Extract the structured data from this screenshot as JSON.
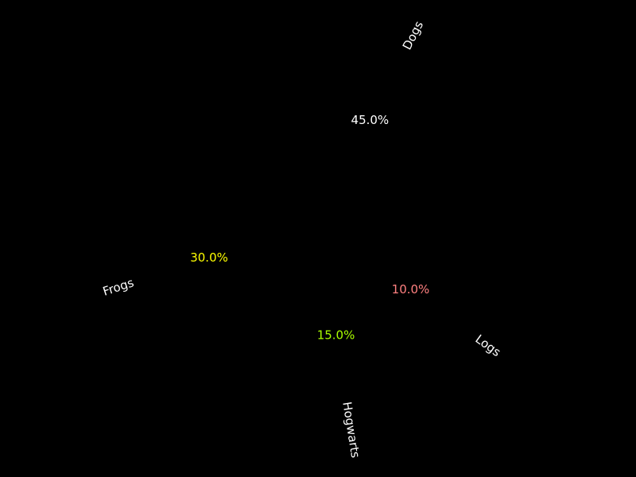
{
  "chart_data": {
    "type": "pie",
    "title": "",
    "categories": [
      "Frogs",
      "Hogwarts",
      "Logs",
      "Dogs"
    ],
    "values": [
      30.0,
      15.0,
      10.0,
      45.0
    ],
    "value_labels": [
      "30.0%",
      "15.0%",
      "10.0%",
      "45.0%"
    ],
    "label_colors": [
      "#ffff00",
      "#aaff00",
      "#ff8080",
      "#ffffff"
    ],
    "slice_colors": [
      "#000000",
      "#000000",
      "#000000",
      "#000000"
    ],
    "background": "#000000",
    "legend": false
  }
}
